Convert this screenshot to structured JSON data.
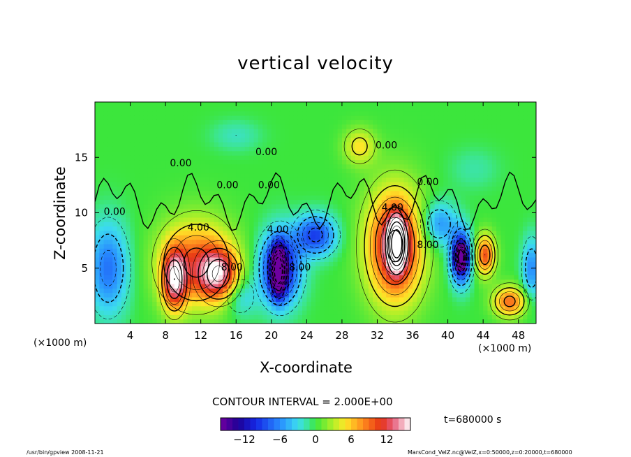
{
  "chart_data": {
    "type": "heatmap",
    "title": "vertical velocity",
    "xlabel": "X-coordinate",
    "ylabel": "Z-coordinate",
    "x_unit": "(×1000 m)",
    "x_ticks": [
      4,
      8,
      12,
      16,
      20,
      24,
      28,
      32,
      36,
      40,
      44,
      48
    ],
    "y_ticks": [
      5,
      10,
      15
    ],
    "xlim": [
      0,
      50
    ],
    "ylim": [
      0,
      20
    ],
    "contour_labels": [
      {
        "text": "0.00",
        "x": 1,
        "y": 9.8
      },
      {
        "text": "0.00",
        "x": 8.5,
        "y": 14.2
      },
      {
        "text": "0.00",
        "x": 13.8,
        "y": 12.2
      },
      {
        "text": "0.00",
        "x": 18.5,
        "y": 12.2
      },
      {
        "text": "0.00",
        "x": 18.2,
        "y": 15.2
      },
      {
        "text": "0.00",
        "x": 31.8,
        "y": 15.8
      },
      {
        "text": "0.00",
        "x": 36.5,
        "y": 12.5
      },
      {
        "text": "4.00",
        "x": 10.5,
        "y": 8.4
      },
      {
        "text": "4.00",
        "x": 19.5,
        "y": 8.2
      },
      {
        "text": "4.00",
        "x": 32.5,
        "y": 10.2
      },
      {
        "text": "8.00",
        "x": 14.3,
        "y": 4.8
      },
      {
        "text": "8.00",
        "x": 36.5,
        "y": 6.8
      },
      {
        "text": "8.00",
        "x": 22,
        "y": 4.8
      }
    ],
    "blobs": [
      {
        "x": 11.5,
        "y": 5.5,
        "rx": 4.5,
        "ry": 4.2,
        "value": 9
      },
      {
        "x": 9,
        "y": 4,
        "rx": 1.5,
        "ry": 3,
        "value": 12
      },
      {
        "x": 14,
        "y": 4.5,
        "rx": 2.5,
        "ry": 2.5,
        "value": 11
      },
      {
        "x": 34,
        "y": 7,
        "rx": 3.5,
        "ry": 5.5,
        "value": 13
      },
      {
        "x": 34.2,
        "y": 7.2,
        "rx": 1.2,
        "ry": 2.6,
        "value": 16
      },
      {
        "x": 44.2,
        "y": 6.2,
        "rx": 1.3,
        "ry": 2.0,
        "value": 10
      },
      {
        "x": 47,
        "y": 2,
        "rx": 2.0,
        "ry": 1.5,
        "value": 9
      },
      {
        "x": 30,
        "y": 16,
        "rx": 2.0,
        "ry": 1.8,
        "value": 5
      },
      {
        "x": 21,
        "y": 5,
        "rx": 2.5,
        "ry": 3.5,
        "value": -12
      },
      {
        "x": 20.8,
        "y": 4.8,
        "rx": 0.9,
        "ry": 2.4,
        "value": -16
      },
      {
        "x": 25,
        "y": 8,
        "rx": 2.5,
        "ry": 2.0,
        "value": -9
      },
      {
        "x": 41.5,
        "y": 6,
        "rx": 1.3,
        "ry": 2.6,
        "value": -13
      },
      {
        "x": 41.5,
        "y": 6,
        "rx": 0.6,
        "ry": 1.2,
        "value": -16
      },
      {
        "x": 1.5,
        "y": 5,
        "rx": 2.5,
        "ry": 4.5,
        "value": -7
      },
      {
        "x": 49.5,
        "y": 5,
        "rx": 1.2,
        "ry": 3,
        "value": -6
      },
      {
        "x": 16.5,
        "y": 2.5,
        "rx": 2,
        "ry": 2,
        "value": -4
      },
      {
        "x": 39,
        "y": 9,
        "rx": 2.2,
        "ry": 2.2,
        "value": -6
      },
      {
        "x": 16,
        "y": 17,
        "rx": 3,
        "ry": 1.5,
        "value": -2
      },
      {
        "x": 43,
        "y": 14,
        "rx": 3,
        "ry": 2,
        "value": -1.5
      }
    ]
  },
  "header": {
    "title": "vertical velocity"
  },
  "axes": {
    "xlabel": "X-coordinate",
    "ylabel": "Z-coordinate",
    "x_unit_left": "(×1000 m)",
    "x_unit_right": "(×1000 m)"
  },
  "legend": {
    "contour_interval": "CONTOUR INTERVAL = 2.000E+00",
    "time": "t=680000 s",
    "colorbar_ticks": [
      "−12",
      "−6",
      "0",
      "6",
      "12"
    ],
    "colorbar_values": [
      -12,
      -6,
      0,
      6,
      12
    ],
    "range": [
      -16,
      16
    ]
  },
  "footer": {
    "left": "/usr/bin/gpview   2008-11-21",
    "right": "MarsCond_VelZ.nc@VelZ,x=0:50000,z=0:20000,t=680000"
  }
}
